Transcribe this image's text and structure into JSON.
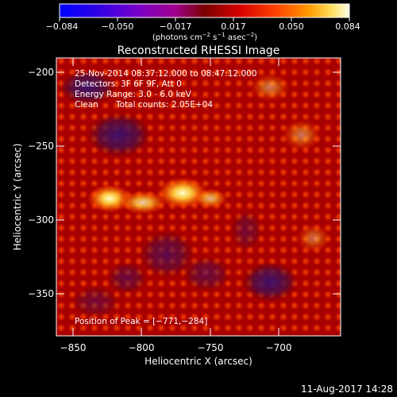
{
  "colorbar": {
    "ticks": [
      "−0.084",
      "−0.050",
      "−0.017",
      "0.017",
      "0.050",
      "0.084"
    ],
    "units_prefix": "(photons cm",
    "units_exp1": "−2",
    "units_mid": " s",
    "units_exp2": "−1",
    "units_mid2": " asec",
    "units_exp3": "−2",
    "units_suffix": ")"
  },
  "title": "Reconstructed RHESSI Image",
  "annotations": {
    "time_range": "25-Nov-2014 08:37:12.000 to 08:47:12.000",
    "detectors": "Detectors: 3F 6F 9F, Att 0",
    "energy": "Energy Range: 3.0 - 6.0 keV",
    "clean": "Clean",
    "counts": "Total counts: 2.05E+04",
    "peak": "Position of Peak = [−771,−284]"
  },
  "axes": {
    "xlabel": "Heliocentric X (arcsec)",
    "ylabel": "Heliocentric Y (arcsec)",
    "xticks": [
      "−850",
      "−800",
      "−750",
      "−700"
    ],
    "yticks": [
      "−200",
      "−250",
      "−300",
      "−350"
    ]
  },
  "footer": {
    "timestamp": "11-Aug-2017 14:28"
  },
  "colors": {
    "background": "#000000",
    "foreground": "#ffffff"
  }
}
